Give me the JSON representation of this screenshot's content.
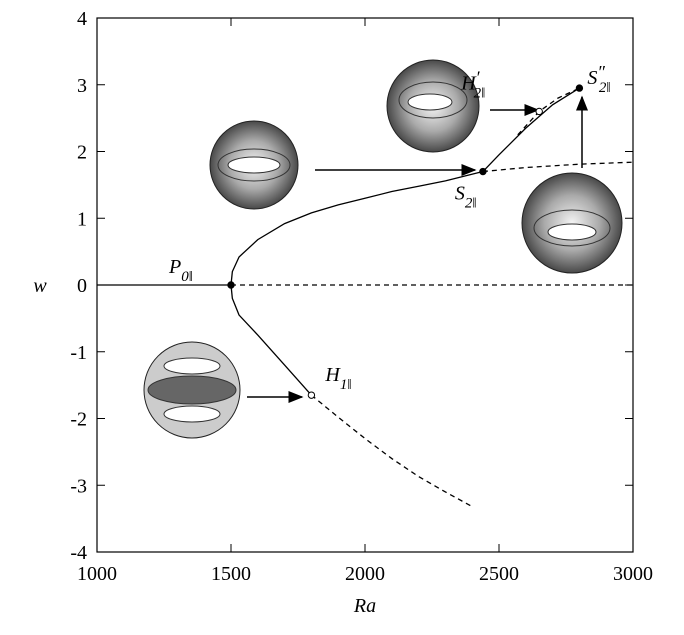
{
  "chart_data": {
    "type": "line",
    "x_label": "Ra",
    "y_label": "w",
    "xlim": [
      1000,
      3000
    ],
    "ylim": [
      -4,
      4
    ],
    "xticks": [
      1000,
      1500,
      2000,
      2500,
      3000
    ],
    "yticks": [
      -4,
      -3,
      -2,
      -1,
      0,
      1,
      2,
      3,
      4
    ],
    "series": [
      {
        "color": "#000000",
        "dashed": false,
        "x": [
          1000,
          1500
        ],
        "values": [
          0,
          0
        ]
      },
      {
        "color": "#000000",
        "dashed": true,
        "x": [
          1500,
          3000
        ],
        "values": [
          0,
          0
        ]
      },
      {
        "color": "#000000",
        "dashed": false,
        "x": [
          1500,
          1505,
          1530,
          1600,
          1700,
          1800,
          1900,
          2000,
          2100,
          2200,
          2300,
          2440
        ],
        "values": [
          0,
          0.2,
          0.42,
          0.68,
          0.92,
          1.08,
          1.2,
          1.3,
          1.4,
          1.48,
          1.56,
          1.7
        ]
      },
      {
        "color": "#000000",
        "dashed": true,
        "x": [
          2440,
          2600,
          2800,
          3000
        ],
        "values": [
          1.7,
          1.76,
          1.81,
          1.84
        ]
      },
      {
        "color": "#000000",
        "dashed": false,
        "x": [
          1500,
          1505,
          1530,
          1600,
          1700,
          1800
        ],
        "values": [
          0,
          -0.2,
          -0.45,
          -0.75,
          -1.2,
          -1.65
        ]
      },
      {
        "color": "#000000",
        "dashed": true,
        "x": [
          1800,
          1900,
          2000,
          2100,
          2200,
          2300,
          2400
        ],
        "values": [
          -1.65,
          -1.98,
          -2.3,
          -2.6,
          -2.87,
          -3.1,
          -3.32
        ]
      },
      {
        "color": "#000000",
        "dashed": false,
        "x": [
          2440,
          2500,
          2600,
          2700,
          2800
        ],
        "values": [
          1.7,
          1.95,
          2.35,
          2.7,
          2.95
        ]
      },
      {
        "color": "#000000",
        "dashed": true,
        "x": [
          2570,
          2650,
          2720,
          2800
        ],
        "values": [
          2.25,
          2.6,
          2.8,
          2.95
        ]
      }
    ],
    "points": [
      {
        "x": 1500,
        "y": 0,
        "filled": true,
        "label": "P",
        "sub": "0‖",
        "sup": null
      },
      {
        "x": 1800,
        "y": -1.65,
        "filled": false,
        "label": "H",
        "sub": "1‖",
        "sup": null
      },
      {
        "x": 2440,
        "y": 1.7,
        "filled": true,
        "label": "S",
        "sub": "2‖",
        "sup": null
      },
      {
        "x": 2650,
        "y": 2.6,
        "filled": false,
        "label": "H",
        "sub": "2‖",
        "sup": "′"
      },
      {
        "x": 2800,
        "y": 2.95,
        "filled": true,
        "label": "S",
        "sub": "2‖",
        "sup": "″"
      }
    ]
  }
}
